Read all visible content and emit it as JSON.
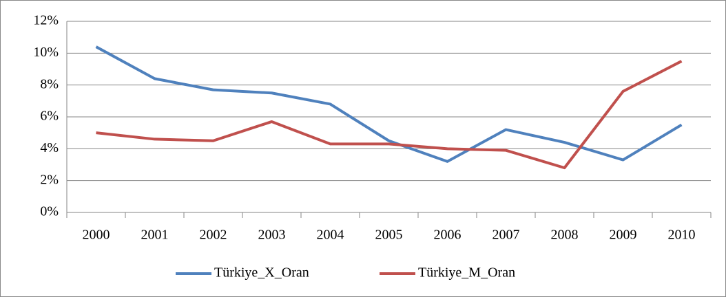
{
  "chart_data": {
    "type": "line",
    "categories": [
      "2000",
      "2001",
      "2002",
      "2003",
      "2004",
      "2005",
      "2006",
      "2007",
      "2008",
      "2009",
      "2010"
    ],
    "series": [
      {
        "name": "Türkiye_X_Oran",
        "color": "#4f81bd",
        "values": [
          10.4,
          8.4,
          7.7,
          7.5,
          6.8,
          4.5,
          3.2,
          5.2,
          4.4,
          3.3,
          5.5
        ]
      },
      {
        "name": "Türkiye_M_Oran",
        "color": "#c0504d",
        "values": [
          5.0,
          4.6,
          4.5,
          5.7,
          4.3,
          4.3,
          4.0,
          3.9,
          2.8,
          7.6,
          9.5
        ]
      }
    ],
    "ylim": [
      0,
      12
    ],
    "yticks": [
      {
        "value": 0,
        "label": "0%"
      },
      {
        "value": 2,
        "label": "2%"
      },
      {
        "value": 4,
        "label": "4%"
      },
      {
        "value": 6,
        "label": "6%"
      },
      {
        "value": 8,
        "label": "8%"
      },
      {
        "value": 10,
        "label": "10%"
      },
      {
        "value": 12,
        "label": "12%"
      }
    ],
    "grid": true,
    "legend": "bottom"
  }
}
